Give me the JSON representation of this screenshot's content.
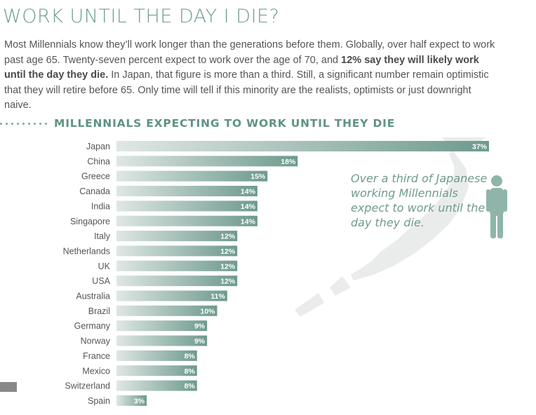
{
  "title": "WORK UNTIL THE DAY I DIE?",
  "intro": {
    "part1": "Most Millennials know they’ll work longer than the generations before them. Globally, over half expect to work past age 65. Twenty-seven percent expect to work over the age of 70, and ",
    "bold": "12% say they will likely work until the day they die.",
    "part2": " In Japan, that figure is more than a third. Still, a significant number remain optimistic that they will retire before 65. Only time will tell if this minority are the realists, optimists or just downright naive."
  },
  "section_title": "MILLENNIALS EXPECTING TO WORK UNTIL THEY DIE",
  "callout": "Over a third of Japanese working Millennials expect to work until the day they die.",
  "colors": {
    "title": "#6e9e92",
    "bar_start": "#dfe7e4",
    "bar_end": "#6e9a8e",
    "map": "#eaeceb",
    "callout": "#6f9b8f"
  },
  "chart_data": {
    "type": "bar",
    "orientation": "horizontal",
    "title": "MILLENNIALS EXPECTING TO WORK UNTIL THEY DIE",
    "categories": [
      "Japan",
      "China",
      "Greece",
      "Canada",
      "India",
      "Singapore",
      "Italy",
      "Netherlands",
      "UK",
      "USA",
      "Australia",
      "Brazil",
      "Germany",
      "Norway",
      "France",
      "Mexico",
      "Switzerland",
      "Spain"
    ],
    "values": [
      37,
      18,
      15,
      14,
      14,
      14,
      12,
      12,
      12,
      12,
      11,
      10,
      9,
      9,
      8,
      8,
      8,
      3
    ],
    "labels": [
      "37%",
      "18%",
      "15%",
      "14%",
      "14%",
      "14%",
      "12%",
      "12%",
      "12%",
      "12%",
      "11%",
      "10%",
      "9%",
      "9%",
      "8%",
      "8%",
      "8%",
      "3%"
    ],
    "xlim": [
      0,
      37
    ],
    "grid": false,
    "legend": "none"
  }
}
